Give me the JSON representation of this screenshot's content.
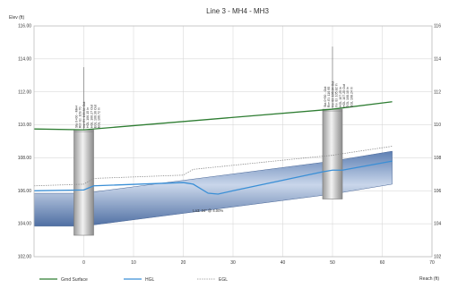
{
  "chart_data": {
    "type": "line",
    "title": "Line 3 - MH4 - MH3",
    "ylabel": "Elev (ft)",
    "xlabel": "Reach (ft)",
    "xlim": [
      -10,
      70
    ],
    "ylim": [
      102,
      116
    ],
    "x_ticks": [
      0,
      10,
      20,
      30,
      40,
      50,
      60,
      70
    ],
    "y_ticks": [
      102,
      104,
      106,
      108,
      110,
      112,
      114,
      116
    ],
    "y_tick_labels": [
      "102.00",
      "104.00",
      "106.00",
      "108.00",
      "110.00",
      "112.00",
      "114.00",
      "116.00"
    ],
    "right_tick_labels": [
      "102",
      "104",
      "106",
      "108",
      "110",
      "112",
      "114",
      "116"
    ],
    "grid": true,
    "legend_position": "bottom-left",
    "series": [
      {
        "name": "Grnd Surface",
        "color": "#2e7d32",
        "style": "solid",
        "x": [
          -10,
          0,
          50,
          62
        ],
        "y": [
          109.75,
          109.7,
          110.95,
          111.4
        ]
      },
      {
        "name": "HGL",
        "color": "#3a8fd6",
        "style": "solid",
        "x": [
          -10,
          0,
          2,
          20,
          22,
          25,
          27,
          30,
          48,
          50,
          52,
          62
        ],
        "y": [
          106.0,
          106.05,
          106.3,
          106.5,
          106.4,
          105.85,
          105.8,
          106.0,
          107.15,
          107.25,
          107.25,
          107.8
        ]
      },
      {
        "name": "EGL",
        "color": "#8c8c8c",
        "style": "dotted",
        "x": [
          -10,
          0,
          2,
          20,
          22,
          48,
          50,
          52,
          62
        ],
        "y": [
          106.3,
          106.4,
          106.75,
          106.95,
          107.3,
          108.1,
          108.15,
          108.25,
          108.7
        ]
      }
    ],
    "pipe": {
      "label": "Ln3: 24\" @ 4.00%",
      "label_x": 25,
      "label_y": 104.7,
      "x": [
        -10,
        0,
        50,
        62
      ],
      "invert": [
        103.85,
        103.85,
        105.8,
        106.4
      ],
      "crown": [
        105.85,
        105.85,
        107.8,
        108.4
      ],
      "color": "#8aa2c8"
    },
    "structures": [
      {
        "name": "MH4",
        "x": 0,
        "top": 109.7,
        "bottom": 103.3,
        "annotation": [
          "Sta 0+00 - MH4",
          "Rim El. 109.70",
          "Inv. El. 103.84 Out",
          "HGL 106.15 In",
          "HGL 106.27 Out",
          "EGL 106.36 Out",
          "EGL 106.72 In"
        ]
      },
      {
        "name": "MH3",
        "x": 50,
        "top": 110.95,
        "bottom": 105.5,
        "annotation": [
          "Sta 0+50 - Out",
          "Rim El. 110.95",
          "Inv. El. 105.84 Out",
          "Inv. El. 105.82 In",
          "HGL 107.25 In",
          "HGL 107.25 Out",
          "EGL 108.10 In",
          "EGL 108.24 In"
        ]
      }
    ]
  }
}
